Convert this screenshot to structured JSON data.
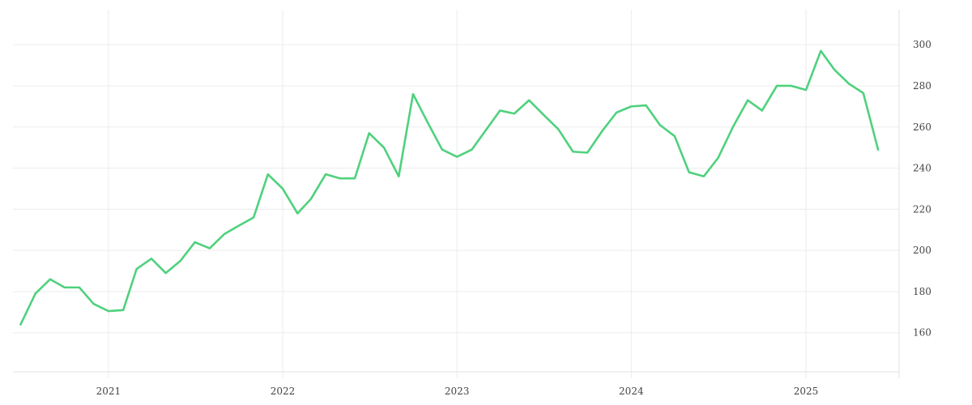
{
  "colors": {
    "series": "#4fd17d",
    "grid": "#ececec",
    "text": "#444444"
  },
  "chart_data": {
    "type": "line",
    "title": "",
    "xlabel": "",
    "ylabel": "",
    "grid": true,
    "y_axis_side": "right",
    "x_axis_type": "date",
    "xlim": [
      "2020-06-15",
      "2025-07-15"
    ],
    "ylim": [
      141,
      317
    ],
    "x_ticks": [
      {
        "value": "2021-01-01",
        "label": "2021"
      },
      {
        "value": "2022-01-01",
        "label": "2022"
      },
      {
        "value": "2023-01-01",
        "label": "2023"
      },
      {
        "value": "2024-01-01",
        "label": "2024"
      },
      {
        "value": "2025-01-01",
        "label": "2025"
      }
    ],
    "y_ticks": [
      160,
      180,
      200,
      220,
      240,
      260,
      280,
      300
    ],
    "series": [
      {
        "name": "",
        "x": [
          "2020-07-01",
          "2020-08-01",
          "2020-09-01",
          "2020-10-01",
          "2020-11-01",
          "2020-12-01",
          "2021-01-01",
          "2021-02-01",
          "2021-03-01",
          "2021-04-01",
          "2021-05-01",
          "2021-06-01",
          "2021-07-01",
          "2021-08-01",
          "2021-09-01",
          "2021-10-01",
          "2021-11-01",
          "2021-12-01",
          "2022-01-01",
          "2022-02-01",
          "2022-03-01",
          "2022-04-01",
          "2022-05-01",
          "2022-06-01",
          "2022-07-01",
          "2022-08-01",
          "2022-09-01",
          "2022-10-01",
          "2022-11-01",
          "2022-12-01",
          "2023-01-01",
          "2023-02-01",
          "2023-03-01",
          "2023-04-01",
          "2023-05-01",
          "2023-06-01",
          "2023-07-01",
          "2023-08-01",
          "2023-09-01",
          "2023-10-01",
          "2023-11-01",
          "2023-12-01",
          "2024-01-01",
          "2024-02-01",
          "2024-03-01",
          "2024-04-01",
          "2024-05-01",
          "2024-06-01",
          "2024-07-01",
          "2024-08-01",
          "2024-09-01",
          "2024-10-01",
          "2024-11-01",
          "2024-12-01",
          "2025-01-01",
          "2025-02-01",
          "2025-03-01",
          "2025-04-01",
          "2025-05-01",
          "2025-06-01"
        ],
        "y": [
          164,
          179,
          186,
          182,
          182,
          174,
          170.5,
          171,
          191,
          196,
          189,
          195,
          204,
          201,
          208,
          212,
          216,
          237,
          230,
          218,
          225,
          237,
          235,
          235,
          257,
          250,
          236,
          276,
          262,
          249,
          245.5,
          249,
          258,
          268,
          266.5,
          273,
          266,
          259,
          248,
          247.5,
          258,
          267,
          270,
          270.5,
          261,
          255.5,
          238,
          236,
          245,
          260,
          273,
          268,
          280,
          280,
          278,
          297,
          288,
          281,
          276.5,
          249
        ]
      }
    ]
  }
}
